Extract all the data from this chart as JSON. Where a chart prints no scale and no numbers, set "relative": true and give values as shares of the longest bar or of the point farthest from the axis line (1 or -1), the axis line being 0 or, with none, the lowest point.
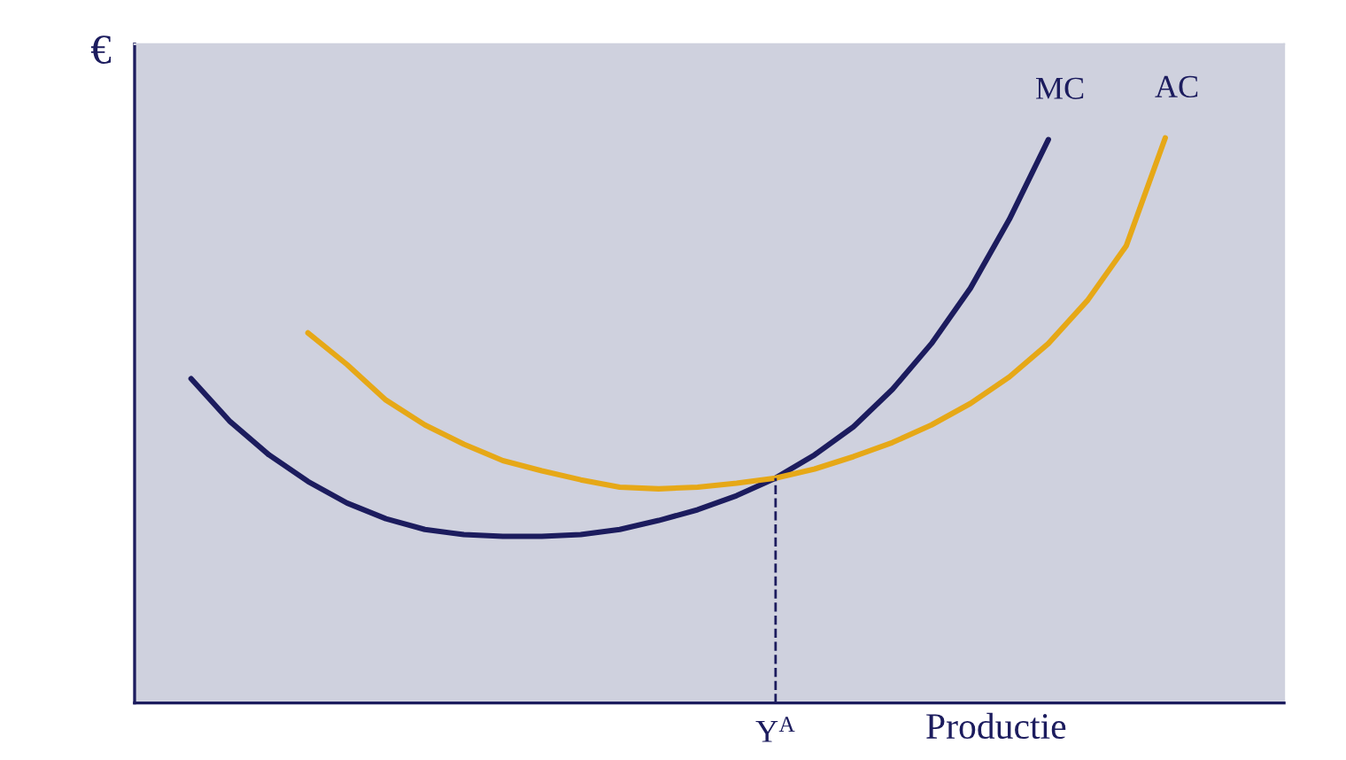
{
  "chart_data": {
    "type": "line",
    "relative": true,
    "ylabel": "€",
    "xlabel": "Productie",
    "legend": false,
    "marker": "none",
    "line_style": "solid",
    "categories": [
      null,
      null,
      null,
      null,
      null,
      null,
      null,
      null,
      null,
      null,
      null,
      null,
      null,
      null,
      null,
      null,
      null,
      null,
      null,
      null,
      null,
      null,
      null,
      null,
      null,
      null,
      null,
      null,
      null
    ],
    "series": [
      {
        "name": "MC",
        "color": "#1c1c5e",
        "values": [
          0.574,
          0.498,
          0.439,
          0.392,
          0.354,
          0.326,
          0.307,
          0.298,
          0.295,
          0.295,
          0.298,
          0.307,
          0.323,
          0.342,
          0.367,
          0.398,
          0.439,
          0.489,
          0.555,
          0.636,
          0.734,
          0.856,
          0.997,
          null,
          null,
          null,
          null,
          null,
          null
        ]
      },
      {
        "name": "AC",
        "color": "#e6a817",
        "values": [
          null,
          null,
          null,
          0.655,
          0.599,
          0.536,
          0.492,
          0.458,
          0.429,
          0.411,
          0.395,
          0.382,
          0.379,
          0.382,
          0.389,
          0.398,
          0.414,
          0.436,
          0.461,
          0.492,
          0.53,
          0.577,
          0.636,
          0.712,
          0.809,
          1.0,
          null,
          null,
          null
        ]
      }
    ],
    "annotations": [
      "Y$^{A}$"
    ]
  }
}
